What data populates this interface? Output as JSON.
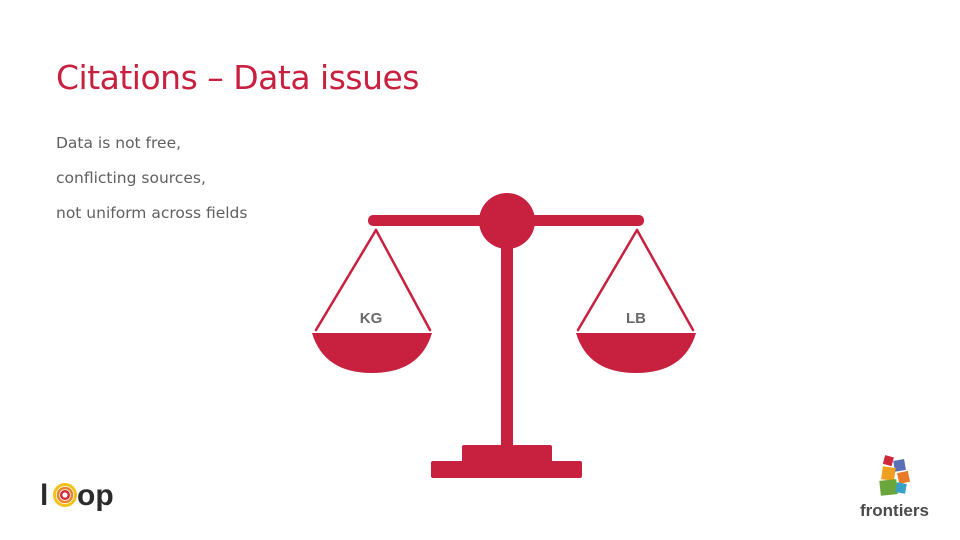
{
  "slide": {
    "title": "Citations – Data issues",
    "bullets": [
      "Data is not free,",
      "conflicting sources,",
      "not uniform across fields"
    ]
  },
  "scale": {
    "left_pan_label": "KG",
    "right_pan_label": "LB",
    "color": "#c8203f"
  },
  "logos": {
    "loop": {
      "prefix": "l",
      "suffix": "op"
    },
    "frontiers": {
      "word": "frontiers"
    }
  }
}
